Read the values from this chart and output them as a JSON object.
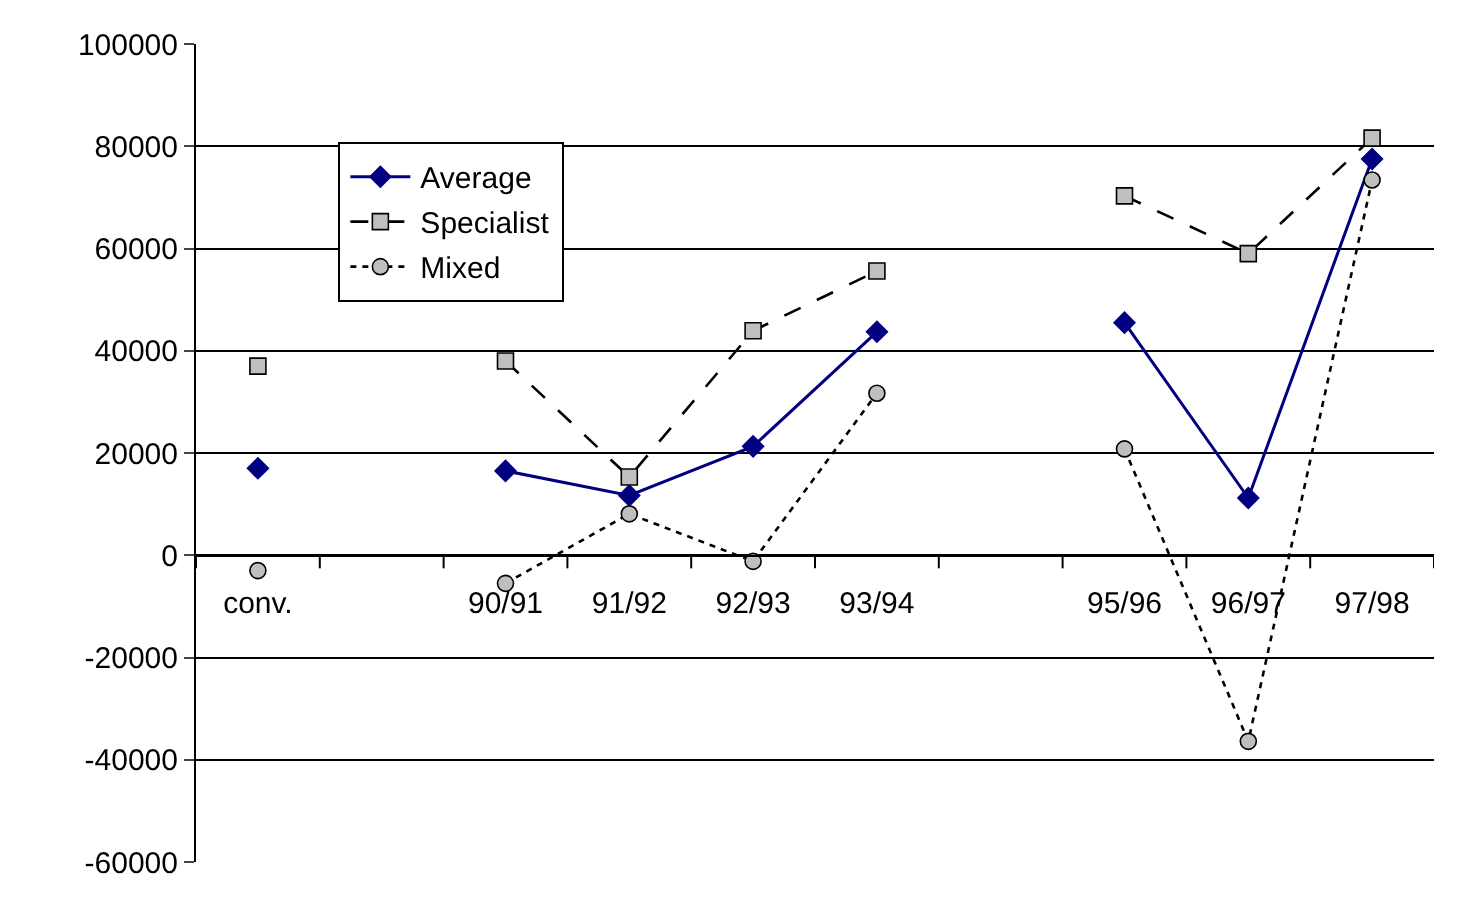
{
  "chart_data": {
    "type": "line",
    "categories": [
      "conv.",
      null,
      "90/91",
      "91/92",
      "92/93",
      "93/94",
      null,
      "95/96",
      "96/97",
      "97/98"
    ],
    "series": [
      {
        "name": "Average",
        "color": "#000080",
        "marker": "diamond",
        "line_style": "solid",
        "values": [
          17000,
          null,
          16500,
          11700,
          21300,
          43700,
          null,
          45500,
          11200,
          77500
        ]
      },
      {
        "name": "Specialist",
        "color": "#000000",
        "marker": "square",
        "line_style": "dashed",
        "values": [
          37000,
          null,
          38000,
          15300,
          43900,
          55600,
          null,
          70300,
          59000,
          81600
        ]
      },
      {
        "name": "Mixed",
        "color": "#000000",
        "marker": "circle",
        "line_style": "dotted",
        "values": [
          -3000,
          null,
          -5500,
          8100,
          -1200,
          31700,
          null,
          20800,
          -36400,
          73400
        ]
      }
    ],
    "ylim": [
      -60000,
      100000
    ],
    "yticks": [
      -60000,
      -40000,
      -20000,
      0,
      20000,
      40000,
      60000,
      80000,
      100000
    ],
    "grid": "y",
    "legend": "top left"
  }
}
